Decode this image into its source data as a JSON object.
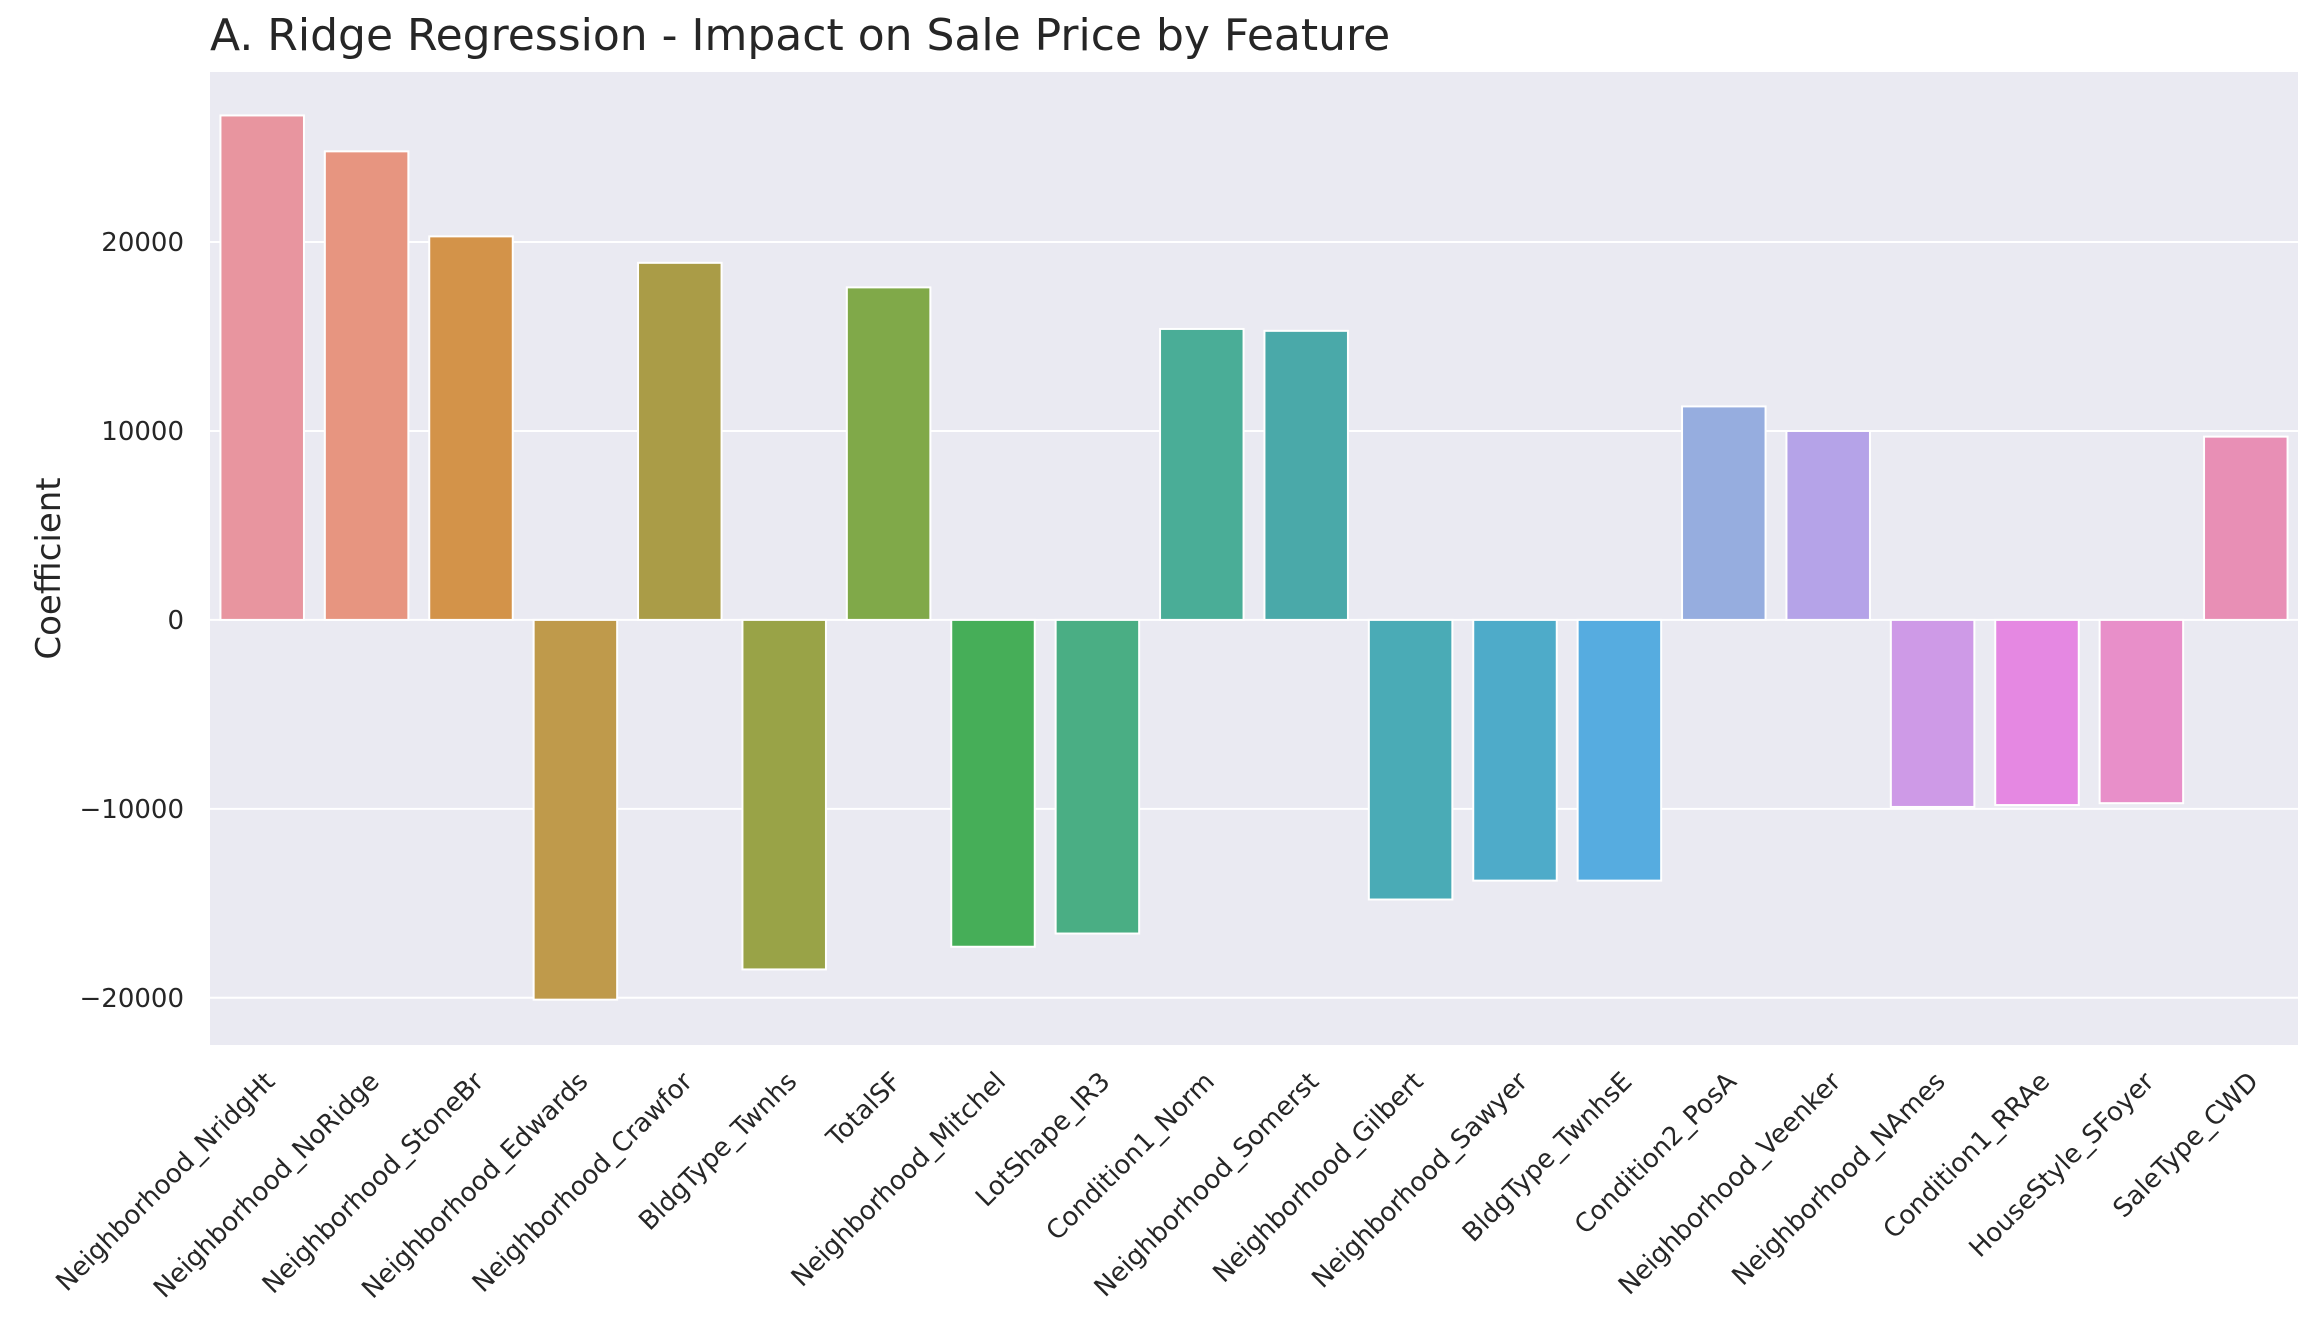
{
  "chart_data": {
    "type": "bar",
    "title": "A. Ridge Regression - Impact on Sale Price by Feature",
    "xlabel": "",
    "ylabel": "Coefficient",
    "ylim": [
      -22500,
      29000
    ],
    "yticks": [
      -20000,
      -10000,
      0,
      10000,
      20000
    ],
    "grid": true,
    "categories": [
      "Neighborhood_NridgHt",
      "Neighborhood_NoRidge",
      "Neighborhood_StoneBr",
      "Neighborhood_Edwards",
      "Neighborhood_Crawfor",
      "BldgType_Twnhs",
      "TotalSF",
      "Neighborhood_Mitchel",
      "LotShape_IR3",
      "Condition1_Norm",
      "Neighborhood_Somerst",
      "Neighborhood_Gilbert",
      "Neighborhood_Sawyer",
      "BldgType_TwnhsE",
      "Condition2_PosA",
      "Neighborhood_Veenker",
      "Neighborhood_NAmes",
      "Condition1_RRAe",
      "HouseStyle_SFoyer",
      "SaleType_CWD"
    ],
    "values": [
      26700,
      24800,
      20300,
      -20100,
      18900,
      -18500,
      17600,
      -17300,
      -16600,
      15400,
      15300,
      -14800,
      -13800,
      -13800,
      11300,
      10000,
      -9900,
      -9800,
      -9700,
      9700
    ],
    "colors": [
      "#e8959f",
      "#e79580",
      "#d39349",
      "#bf9a4b",
      "#aa9c47",
      "#99a347",
      "#80a949",
      "#46ae58",
      "#4aae84",
      "#4aad97",
      "#4aa9a9",
      "#4aabb6",
      "#4eabc9",
      "#56ace0",
      "#96addf",
      "#b5a3e8",
      "#ce9ae7",
      "#e588e2",
      "#e88fc9",
      "#e88fb5"
    ],
    "background_color": "#eaeaf2",
    "grid_color": "#ffffff"
  }
}
